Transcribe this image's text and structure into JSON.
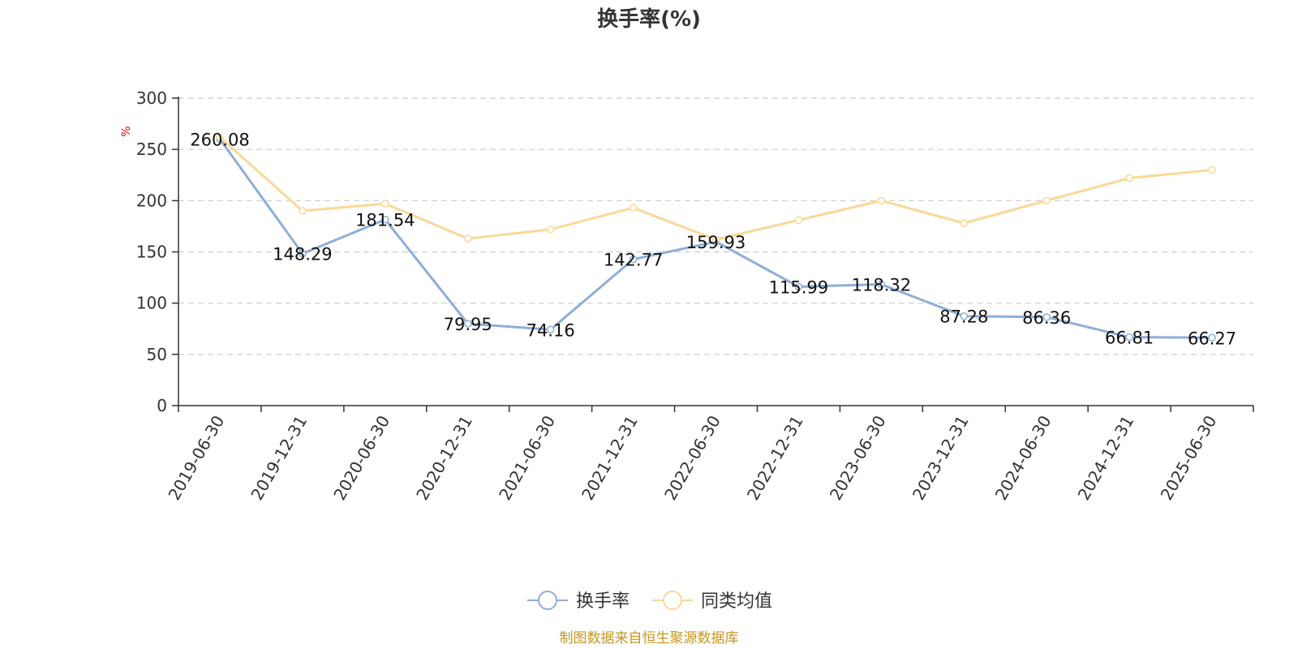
{
  "chart_data": {
    "type": "line",
    "title": "换手率(%)",
    "ylabel": "%",
    "xlabel": "",
    "ylim": [
      0,
      300
    ],
    "yticks": [
      0,
      50,
      100,
      150,
      200,
      250,
      300
    ],
    "grid": true,
    "categories": [
      "2019-06-30",
      "2019-12-31",
      "2020-06-30",
      "2020-12-31",
      "2021-06-30",
      "2021-12-31",
      "2022-06-30",
      "2022-12-31",
      "2023-06-30",
      "2023-12-31",
      "2024-06-30",
      "2024-12-31",
      "2025-06-30"
    ],
    "series": [
      {
        "name": "换手率",
        "color": "#8eaed8",
        "values": [
          260.08,
          148.29,
          181.54,
          79.95,
          74.16,
          142.77,
          159.93,
          115.99,
          118.32,
          87.28,
          86.36,
          66.81,
          66.27
        ],
        "labels": [
          "260.08",
          "148.29",
          "181.54",
          "79.95",
          "74.16",
          "142.77",
          "159.93",
          "115.99",
          "118.32",
          "87.28",
          "86.36",
          "66.81",
          "66.27"
        ]
      },
      {
        "name": "同类均值",
        "color": "#fad896",
        "values": [
          262,
          190,
          197,
          163,
          172,
          193,
          162,
          181,
          200,
          178,
          200,
          222,
          230
        ]
      }
    ],
    "legend_position": "bottom-center",
    "source": "制图数据来自恒生聚源数据库"
  }
}
